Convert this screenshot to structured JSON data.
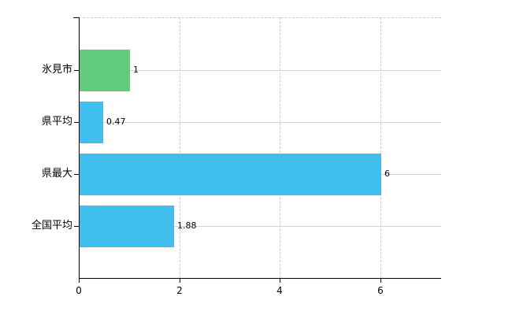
{
  "chart_data": {
    "type": "bar",
    "orientation": "horizontal",
    "title": "",
    "categories": [
      "氷見市",
      "県平均",
      "県最大",
      "全国平均"
    ],
    "values": [
      1,
      0.47,
      6,
      1.88
    ],
    "value_labels": [
      "1",
      "0.47",
      "6",
      "1.88"
    ],
    "bar_colors": [
      "#62cb7c",
      "#40bfee",
      "#40bfee",
      "#40bfee"
    ],
    "x_ticks": [
      0,
      2,
      4,
      6
    ],
    "x_tick_labels": [
      "0",
      "2",
      "4",
      "6"
    ],
    "xlim": [
      0,
      7.2
    ],
    "grid": true,
    "legend_position": "none",
    "axis_color": "#000000",
    "gridline_color": "#d4d4d4",
    "background_color": "#ffffff"
  }
}
